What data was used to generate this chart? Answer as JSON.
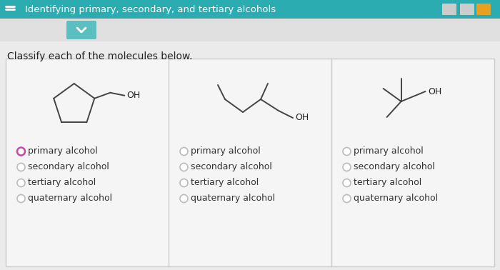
{
  "title": "Identifying primary, secondary, and tertiary alcohols",
  "subtitle": "Classify each of the molecules below.",
  "header_bg": "#2aacb0",
  "header_text_color": "#ffffff",
  "body_bg": "#ebebeb",
  "table_bg": "#f5f5f5",
  "border_color": "#cccccc",
  "radio_options": [
    "primary alcohol",
    "secondary alcohol",
    "tertiary alcohol",
    "quaternary alcohol"
  ],
  "selected": [
    0,
    -1,
    -1
  ],
  "radio_selected_color": "#cc44aa",
  "radio_unselected_color": "#aaaaaa",
  "line_color": "#444444",
  "progress_colors": [
    "#cccccc",
    "#cccccc",
    "#e8a020"
  ],
  "chevron_box_color": "#5bbec0",
  "chevron_color": "#ffffff"
}
